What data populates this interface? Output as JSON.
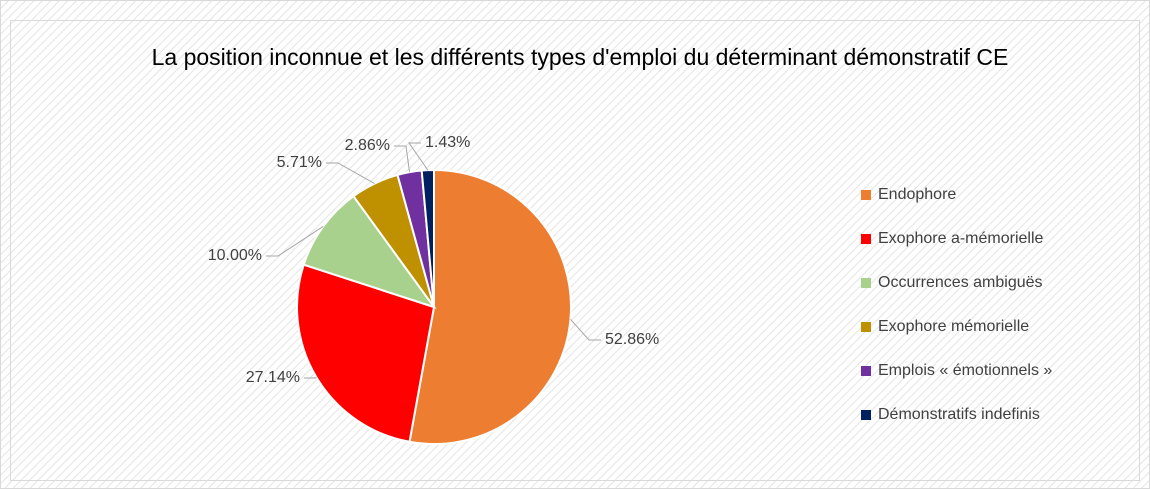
{
  "chart_data": {
    "type": "pie",
    "title": "La position inconnue et les différents types d'emploi du déterminant démonstratif CE",
    "categories": [
      "Endophore",
      "Exophore a-mémorielle",
      "Occurrences ambiguës",
      "Exophore mémorielle",
      "Emplois « émotionnels »",
      "Démonstratifs indefinis"
    ],
    "values": [
      52.86,
      27.14,
      10.0,
      5.71,
      2.86,
      1.43
    ],
    "value_labels": [
      "52.86%",
      "27.14%",
      "10.00%",
      "5.71%",
      "2.86%",
      "1.43%"
    ],
    "colors": [
      "#ed7d31",
      "#ff0000",
      "#a9d18e",
      "#bf9000",
      "#7030a0",
      "#002060"
    ],
    "legend": "right"
  }
}
